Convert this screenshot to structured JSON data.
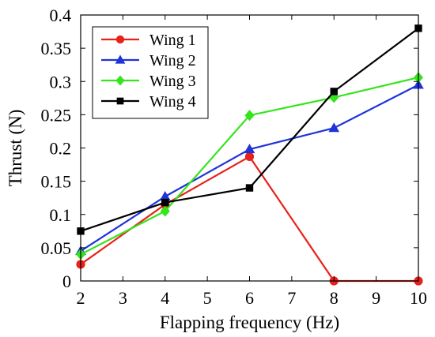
{
  "chart_data": {
    "type": "line",
    "title": "",
    "xlabel": "Flapping frequency (Hz)",
    "ylabel": "Thrust (N)",
    "xlim": [
      2,
      10
    ],
    "ylim": [
      0,
      0.4
    ],
    "x_ticks": [
      "2",
      "3",
      "4",
      "5",
      "6",
      "7",
      "8",
      "9",
      "10"
    ],
    "y_ticks": [
      "0",
      "0.05",
      "0.1",
      "0.15",
      "0.2",
      "0.25",
      "0.3",
      "0.35",
      "0.4"
    ],
    "grid": false,
    "legend_position": "top-left",
    "series": [
      {
        "name": "Wing 1",
        "color": "#e8211b",
        "marker": "circle",
        "x": [
          2,
          4,
          6,
          8,
          10
        ],
        "y": [
          0.025,
          0.115,
          0.187,
          0.0,
          0.0
        ]
      },
      {
        "name": "Wing 2",
        "color": "#1f33d9",
        "marker": "triangle",
        "x": [
          2,
          4,
          6,
          8,
          10
        ],
        "y": [
          0.045,
          0.127,
          0.198,
          0.23,
          0.295
        ]
      },
      {
        "name": "Wing 3",
        "color": "#33e51a",
        "marker": "diamond",
        "x": [
          2,
          4,
          6,
          8,
          10
        ],
        "y": [
          0.04,
          0.105,
          0.249,
          0.276,
          0.306
        ]
      },
      {
        "name": "Wing 4",
        "color": "#000000",
        "marker": "square",
        "x": [
          2,
          4,
          6,
          8,
          10
        ],
        "y": [
          0.075,
          0.118,
          0.14,
          0.285,
          0.38
        ]
      }
    ]
  }
}
